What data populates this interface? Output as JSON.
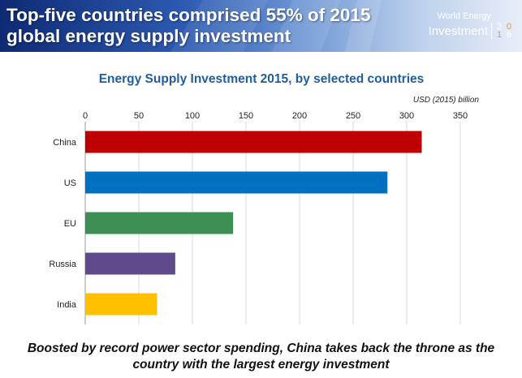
{
  "banner": {
    "title": "Top-five countries comprised 55% of 2015 global energy supply investment",
    "brand_line1": "World Energy",
    "brand_line2": "Investment",
    "brand_year": [
      "2",
      "0",
      "1",
      "6"
    ]
  },
  "chart_data": {
    "type": "bar",
    "orientation": "horizontal",
    "title": "Energy Supply Investment 2015, by selected countries",
    "unit_label": "USD (2015) billion",
    "categories": [
      "China",
      "US",
      "EU",
      "Russia",
      "India"
    ],
    "values": [
      314,
      282,
      138,
      84,
      67
    ],
    "colors": [
      "#c00000",
      "#0070c0",
      "#3f8f55",
      "#5f4b8b",
      "#ffc000"
    ],
    "xlim": [
      0,
      350
    ],
    "xticks": [
      "0",
      "50",
      "100",
      "150",
      "200",
      "250",
      "300",
      "350"
    ],
    "grid": true,
    "axis_position": "top"
  },
  "footer": {
    "caption": "Boosted by record power sector spending, China takes back the throne as the country with the largest energy investment"
  }
}
